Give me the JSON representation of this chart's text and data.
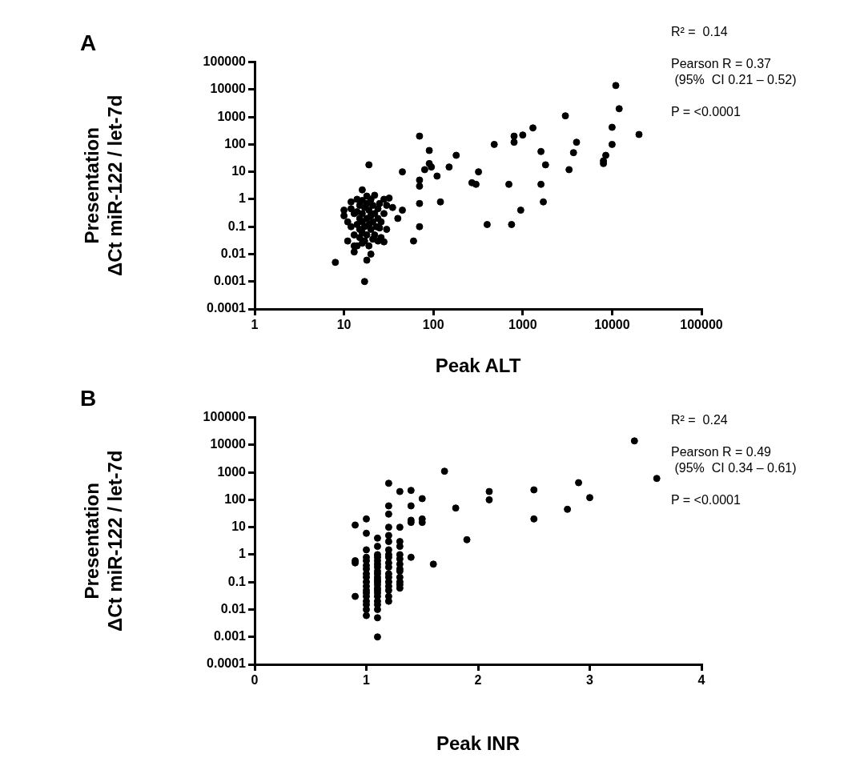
{
  "chart_data": [
    {
      "type": "scatter",
      "title": "A",
      "xlabel": "Peak ALT",
      "ylabel": "Presentation\nΔCt miR-122 / let-7d",
      "log": "xy",
      "grid": false,
      "legend": false,
      "marker": "circle",
      "xlim": [
        1,
        100000
      ],
      "xticks": [
        1,
        10,
        100,
        1000,
        10000,
        100000
      ],
      "ylim": [
        0.0001,
        100000
      ],
      "yticks": [
        0.0001,
        0.001,
        0.01,
        0.1,
        1,
        10,
        100,
        1000,
        10000,
        100000
      ],
      "annotations": [
        "R² =  0.14",
        "Pearson R = 0.37\n (95%  CI 0.21 – 0.52)",
        "P = <0.0001"
      ],
      "series": [
        {
          "color": "#000000",
          "x": [
            10,
            10,
            11,
            11,
            12,
            12,
            12,
            13,
            13,
            13,
            14,
            14,
            14,
            14,
            15,
            15,
            15,
            15,
            16,
            16,
            16,
            16,
            16,
            16,
            17,
            17,
            17,
            18,
            18,
            18,
            18,
            19,
            19,
            19,
            20,
            20,
            20,
            21,
            21,
            21,
            22,
            22,
            22,
            23,
            24,
            24,
            24,
            25,
            25,
            26,
            26,
            28,
            28,
            28,
            30,
            30,
            32,
            35,
            40,
            45,
            8,
            17,
            18,
            20,
            13,
            70,
            19,
            45,
            70,
            70,
            80,
            90,
            90,
            95,
            110,
            120,
            60,
            70,
            70,
            180,
            150,
            270,
            300,
            320,
            480,
            400,
            700,
            750,
            800,
            800,
            1000,
            1300,
            950,
            1600,
            1600,
            1700,
            1800,
            3000,
            3300,
            3700,
            4000,
            8000,
            8000,
            8500,
            10000,
            10000,
            11000,
            12000,
            20000
          ],
          "values": [
            0.4,
            0.25,
            0.15,
            0.03,
            0.8,
            0.45,
            0.1,
            0.3,
            0.05,
            0.02,
            1.0,
            0.35,
            0.12,
            0.02,
            0.6,
            0.2,
            0.08,
            0.04,
            2.2,
            0.9,
            0.3,
            0.15,
            0.06,
            0.025,
            0.5,
            0.1,
            0.03,
            1.3,
            0.7,
            0.2,
            0.05,
            0.4,
            0.12,
            0.02,
            1.0,
            0.25,
            0.08,
            0.6,
            0.15,
            0.035,
            1.4,
            0.3,
            0.05,
            0.1,
            0.45,
            0.2,
            0.03,
            0.7,
            0.09,
            0.15,
            0.04,
            1.0,
            0.3,
            0.028,
            0.6,
            0.08,
            1.1,
            0.5,
            0.2,
            0.4,
            0.005,
            0.001,
            0.006,
            0.01,
            0.012,
            200,
            18,
            10,
            5,
            3,
            12,
            20,
            60,
            15,
            7,
            0.8,
            0.03,
            0.1,
            0.7,
            40,
            15,
            4,
            3.5,
            10,
            100,
            0.12,
            3.5,
            0.12,
            200,
            120,
            220,
            400,
            0.4,
            55,
            3.5,
            0.8,
            18,
            1100,
            12,
            50,
            120,
            20,
            25,
            40,
            420,
            100,
            14000,
            2000,
            230
          ]
        }
      ]
    },
    {
      "type": "scatter",
      "title": "B",
      "xlabel": "Peak INR",
      "ylabel": "Presentation\nΔCt miR-122 / let-7d",
      "log": "y",
      "grid": false,
      "legend": false,
      "marker": "circle",
      "xlim": [
        0,
        4
      ],
      "xticks": [
        0,
        1,
        2,
        3,
        4
      ],
      "ylim": [
        0.0001,
        100000
      ],
      "yticks": [
        0.0001,
        0.001,
        0.01,
        0.1,
        1,
        10,
        100,
        1000,
        10000,
        100000
      ],
      "annotations": [
        "R² =  0.24",
        "Pearson R = 0.49\n (95%  CI 0.34 – 0.61)",
        "P = <0.0001"
      ],
      "series": [
        {
          "color": "#000000",
          "x": [
            0.9,
            0.9,
            0.9,
            0.9,
            1,
            1,
            1,
            1,
            1,
            1,
            1,
            1,
            1,
            1,
            1,
            1,
            1,
            1,
            1,
            1,
            1,
            1,
            1.1,
            1.1,
            1.1,
            1.1,
            1.1,
            1.1,
            1.1,
            1.1,
            1.1,
            1.1,
            1.1,
            1.1,
            1.1,
            1.1,
            1.1,
            1.1,
            1.1,
            1.1,
            1.1,
            1.1,
            1.1,
            1.1,
            1.2,
            1.2,
            1.2,
            1.2,
            1.2,
            1.2,
            1.2,
            1.2,
            1.2,
            1.2,
            1.2,
            1.2,
            1.2,
            1.2,
            1.2,
            1.2,
            1.2,
            1.2,
            1.3,
            1.3,
            1.3,
            1.3,
            1.3,
            1.3,
            1.3,
            1.3,
            1.3,
            1.3,
            1.3,
            1.3,
            1.3,
            1.4,
            1.4,
            1.4,
            1.4,
            1.4,
            1.5,
            1.5,
            1.5,
            1.6,
            1.7,
            1.8,
            1.9,
            2.1,
            2.1,
            2.5,
            2.5,
            2.8,
            2.9,
            3.0,
            3.4,
            3.6
          ],
          "values": [
            12,
            0.6,
            0.5,
            0.03,
            20,
            6,
            1.5,
            0.8,
            0.6,
            0.4,
            0.3,
            0.2,
            0.15,
            0.1,
            0.07,
            0.05,
            0.04,
            0.03,
            0.02,
            0.015,
            0.01,
            0.006,
            4,
            2,
            1,
            0.8,
            0.6,
            0.45,
            0.35,
            0.25,
            0.2,
            0.15,
            0.12,
            0.1,
            0.08,
            0.06,
            0.05,
            0.04,
            0.03,
            0.02,
            0.015,
            0.01,
            0.005,
            0.001,
            400,
            60,
            30,
            10,
            5,
            3,
            1.5,
            1,
            0.8,
            0.5,
            0.35,
            0.2,
            0.15,
            0.1,
            0.07,
            0.05,
            0.03,
            0.02,
            200,
            10,
            3,
            2,
            1,
            0.7,
            0.45,
            0.3,
            0.25,
            0.15,
            0.1,
            0.08,
            0.06,
            220,
            60,
            18,
            15,
            0.8,
            110,
            20,
            15,
            0.45,
            1100,
            50,
            3.5,
            200,
            100,
            230,
            20,
            45,
            420,
            120,
            14000,
            600
          ]
        }
      ]
    }
  ]
}
